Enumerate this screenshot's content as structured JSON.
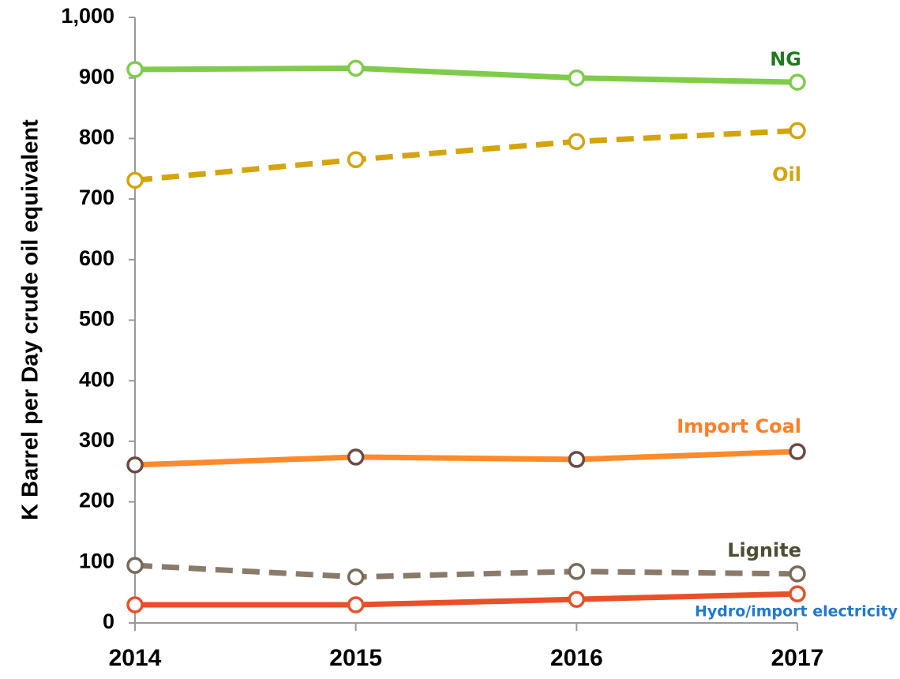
{
  "chart_data": {
    "type": "line",
    "y_label": "K Barrel per Day crude oil equivalent",
    "categories": [
      "2014",
      "2015",
      "2016",
      "2017"
    ],
    "ylim": [
      0,
      1000
    ],
    "yticks": [
      0,
      100,
      200,
      300,
      400,
      500,
      600,
      700,
      800,
      900,
      {
        "value": 1000,
        "label": "1,000"
      }
    ],
    "series": [
      {
        "name": "NG",
        "color": "#7fcc4a",
        "marker_color": "#7fcc4a",
        "label_color": "#1e7a1e",
        "dashed": false,
        "values": [
          914,
          916,
          900,
          893
        ]
      },
      {
        "name": "Oil",
        "color": "#d4a40a",
        "marker_color": "#d4a40a",
        "label_color": "#d4a40a",
        "dashed": true,
        "values": [
          731,
          765,
          795,
          813
        ]
      },
      {
        "name": "Import Coal",
        "color": "#ff8a2a",
        "marker_color": "#6b4a44",
        "label_color": "#ff7f27",
        "dashed": false,
        "values": [
          261,
          274,
          270,
          283
        ]
      },
      {
        "name": "Lignite",
        "color": "#8a7a6a",
        "marker_color": "#7a6a5a",
        "label_color": "#4d4d33",
        "dashed": true,
        "values": [
          95,
          76,
          85,
          81
        ]
      },
      {
        "name": "Hydro/import electricity",
        "color": "#e8502a",
        "marker_color": "#e8502a",
        "label_color": "#1f78d1",
        "dashed": false,
        "values": [
          30,
          30,
          39,
          48
        ]
      }
    ]
  }
}
